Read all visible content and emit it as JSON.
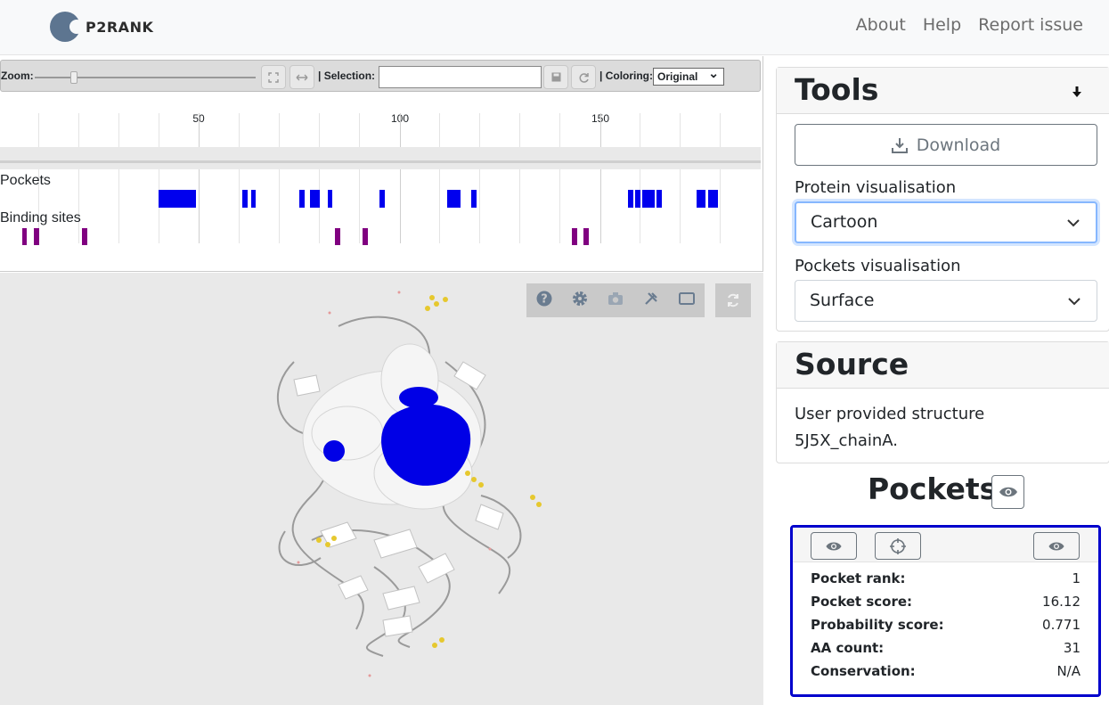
{
  "nav": {
    "logo_text": "P2RANK",
    "links": [
      "About",
      "Help",
      "Report issue"
    ]
  },
  "sequence_viewer": {
    "zoom_label": "Zoom:",
    "selection_label": "| Selection:",
    "selection_value": "",
    "coloring_label": "| Coloring:",
    "coloring_value": "Original",
    "ticks": [
      "50",
      "100",
      "150"
    ],
    "tracks": {
      "pockets": "Pockets",
      "binding_sites": "Binding sites"
    }
  },
  "tools": {
    "title": "Tools",
    "download_label": "Download",
    "protein_vis_label": "Protein visualisation",
    "protein_vis_value": "Cartoon",
    "pockets_vis_label": "Pockets visualisation",
    "pockets_vis_value": "Surface"
  },
  "source": {
    "title": "Source",
    "line1": "User provided structure",
    "line2": "5J5X_chainA."
  },
  "pockets": {
    "title": "Pockets",
    "selected": {
      "rows": [
        {
          "key": "Pocket rank:",
          "value": "1"
        },
        {
          "key": "Pocket score:",
          "value": "16.12"
        },
        {
          "key": "Probability score:",
          "value": "0.771"
        },
        {
          "key": "AA count:",
          "value": "31"
        },
        {
          "key": "Conservation:",
          "value": "N/A"
        }
      ]
    }
  },
  "colors": {
    "pocket": "#0000ee",
    "binding_site": "#800080",
    "highlight_border": "#0000cc"
  }
}
